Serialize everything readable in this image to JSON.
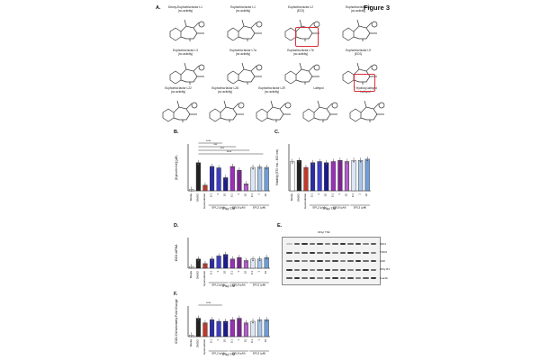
{
  "figure": {
    "title": "Figure 3"
  },
  "panelA": {
    "label": "A.",
    "structures": [
      {
        "name": "Deoxy-Euphorbia factor L1",
        "note": "(no activity)"
      },
      {
        "name": "Euphorbia factor L1",
        "note": "(no activity)"
      },
      {
        "name": "Euphorbia factor L2",
        "note": "(EC0)"
      },
      {
        "name": "Euphorbia factor L6",
        "note": "(no activity)"
      },
      {
        "name": "Euphorbia factor L3",
        "note": "(no activity)"
      },
      {
        "name": "Euphorbia factor L7a",
        "note": "(no activity)"
      },
      {
        "name": "Euphorbia factor L7b",
        "note": "(no activity)"
      },
      {
        "name": "Euphorbia factor L9",
        "note": "(EC0)"
      },
      {
        "name": "Euphorbia factor L22",
        "note": "(no activity)"
      },
      {
        "name": "Euphorbia factor L28",
        "note": "(no activity)"
      },
      {
        "name": "Euphorbia factor L29",
        "note": "(no activity)"
      },
      {
        "name": "Lathyrol",
        "note": ""
      },
      {
        "name": "7-Hydroxy-lathyrol",
        "note": "Lathyrol"
      }
    ]
  },
  "panelB": {
    "label": "B.",
    "ylabel": "[Kynurenine] (µM)",
    "group": "IFNγ/ TNF",
    "sig": [
      "****",
      "***",
      "***",
      "****"
    ]
  },
  "panelC": {
    "label": "C.",
    "ylabel": "Viability (570 nm - 600 nm)",
    "group": "IFNγ/ TNF"
  },
  "panelD": {
    "label": "D.",
    "ylabel": "IDO1 mRNA normalized to mean 2^-ΔCT across all samples",
    "group": "IFNγ/ TNF"
  },
  "panelE": {
    "label": "E.",
    "group": "IFNγ/ TNF",
    "rows": [
      "IDO1",
      "TDO2",
      "AhR",
      "IFNγ R1",
      "β-actin"
    ]
  },
  "panelF": {
    "label": "F.",
    "ylabel": "IDO1 Densitometry Fold Change",
    "group": "IFNγ/ TNF",
    "sig": [
      "****"
    ]
  },
  "groups": {
    "efl2": "EFL2 (µM)",
    "efl8": "EFL8 (µM)",
    "efl3": "EFL3 (µM)"
  },
  "xcats": [
    "Media",
    "DMSO",
    "Epacadostat",
    "0.1",
    "1",
    "10",
    "0.1",
    "1",
    "10",
    "0.1",
    "1",
    "10"
  ],
  "chart_data": [
    {
      "type": "bar",
      "title": "B",
      "ylabel": "[Kynurenine] (µM)",
      "ylim": [
        0,
        100
      ],
      "categories": [
        "Media",
        "DMSO",
        "Epacadostat",
        "EFL2 0.1",
        "EFL2 1",
        "EFL2 10",
        "EFL8 0.1",
        "EFL8 1",
        "EFL8 10",
        "EFL3 0.1",
        "EFL3 1",
        "EFL3 10"
      ],
      "values": [
        3,
        60,
        12,
        52,
        49,
        28,
        52,
        44,
        15,
        50,
        51,
        50
      ],
      "colors": [
        "#ffffff",
        "#222222",
        "#c0392b",
        "#2c2ca8",
        "#3d3dc8",
        "#1c1c8a",
        "#9b30b8",
        "#7a2590",
        "#b260c8",
        "#dce6f4",
        "#a8c4e6",
        "#6f9ed6"
      ]
    },
    {
      "type": "bar",
      "title": "C",
      "ylabel": "Viability (570 nm - 600 nm)",
      "ylim": [
        0,
        2.0
      ],
      "categories": [
        "Media",
        "DMSO",
        "Epacadostat",
        "EFL2 0.1",
        "EFL2 1",
        "EFL2 10",
        "EFL8 0.1",
        "EFL8 1",
        "EFL8 10",
        "EFL3 0.1",
        "EFL3 1",
        "EFL3 10"
      ],
      "values": [
        1.25,
        1.3,
        1.0,
        1.2,
        1.25,
        1.2,
        1.25,
        1.3,
        1.25,
        1.3,
        1.3,
        1.35
      ],
      "colors": [
        "#ffffff",
        "#222222",
        "#c0392b",
        "#2c2ca8",
        "#3d3dc8",
        "#1c1c8a",
        "#9b30b8",
        "#7a2590",
        "#b260c8",
        "#dce6f4",
        "#a8c4e6",
        "#6f9ed6"
      ]
    },
    {
      "type": "bar",
      "title": "D",
      "ylabel": "IDO1 mRNA",
      "ylim": [
        0,
        20
      ],
      "categories": [
        "Media",
        "DMSO",
        "Epacadostat",
        "EFL2 0.1",
        "EFL2 1",
        "EFL2 10",
        "EFL8 0.1",
        "EFL8 1",
        "EFL8 10",
        "EFL3 0.1",
        "EFL3 1",
        "EFL3 10"
      ],
      "values": [
        1,
        6,
        3,
        6,
        8,
        9,
        6,
        7,
        5,
        6,
        6,
        7
      ],
      "colors": [
        "#ffffff",
        "#222222",
        "#c0392b",
        "#2c2ca8",
        "#3d3dc8",
        "#1c1c8a",
        "#9b30b8",
        "#7a2590",
        "#b260c8",
        "#dce6f4",
        "#a8c4e6",
        "#6f9ed6"
      ]
    },
    {
      "type": "bar",
      "title": "F",
      "ylabel": "IDO1 Densitometry Fold Change",
      "ylim": [
        0,
        20
      ],
      "categories": [
        "Media",
        "DMSO",
        "Epacadostat",
        "EFL2 0.1",
        "EFL2 1",
        "EFL2 10",
        "EFL8 0.1",
        "EFL8 1",
        "EFL8 10",
        "EFL3 0.1",
        "EFL3 1",
        "EFL3 10"
      ],
      "values": [
        1,
        12,
        9,
        11,
        10,
        10,
        11,
        12,
        9,
        10,
        11,
        11
      ],
      "colors": [
        "#ffffff",
        "#222222",
        "#c0392b",
        "#2c2ca8",
        "#3d3dc8",
        "#1c1c8a",
        "#9b30b8",
        "#7a2590",
        "#b260c8",
        "#dce6f4",
        "#a8c4e6",
        "#6f9ed6"
      ]
    }
  ]
}
